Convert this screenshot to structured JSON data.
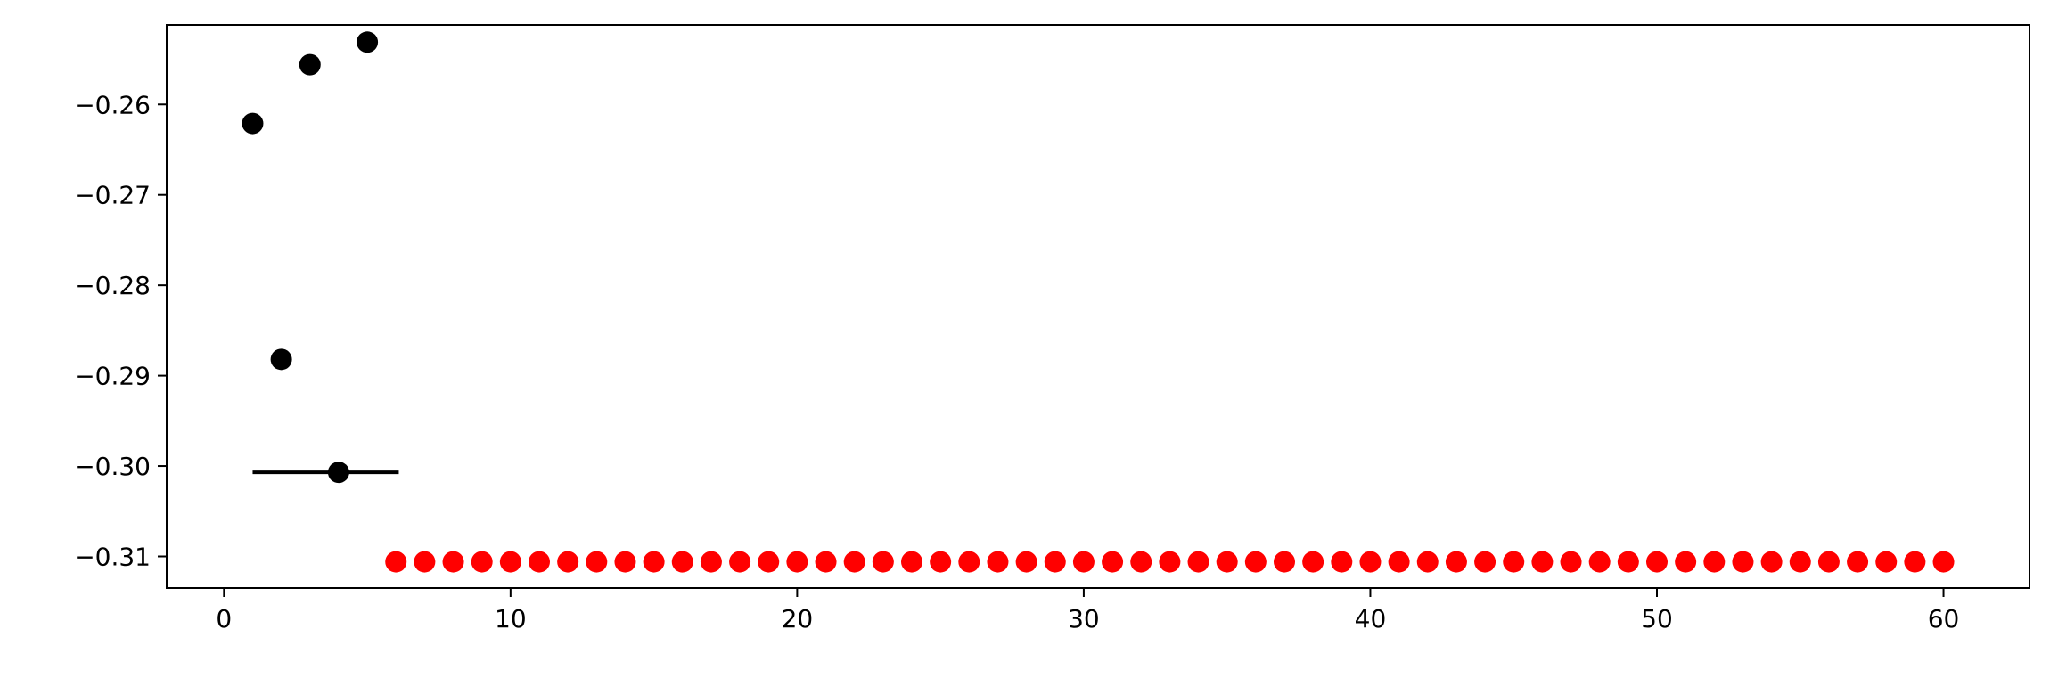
{
  "chart_data": {
    "type": "scatter",
    "title": "",
    "xlabel": "",
    "ylabel": "",
    "xlim": [
      -2,
      63
    ],
    "ylim": [
      -0.3135,
      -0.2512
    ],
    "xticks": [
      0,
      10,
      20,
      30,
      40,
      50,
      60
    ],
    "yticks": [
      -0.26,
      -0.27,
      -0.28,
      -0.29,
      -0.3,
      -0.31
    ],
    "xtick_labels": [
      "0",
      "10",
      "20",
      "30",
      "40",
      "50",
      "60"
    ],
    "ytick_labels": [
      "−0.26",
      "−0.27",
      "−0.28",
      "−0.29",
      "−0.30",
      "−0.31"
    ],
    "grid": false,
    "series": [
      {
        "color": "#000000",
        "x": [
          1,
          2,
          3,
          4,
          5
        ],
        "y": [
          -0.2621,
          -0.2882,
          -0.2556,
          -0.3007,
          -0.2531
        ]
      },
      {
        "color": "#ff0000",
        "x": [
          6,
          7,
          8,
          9,
          10,
          11,
          12,
          13,
          14,
          15,
          16,
          17,
          18,
          19,
          20,
          21,
          22,
          23,
          24,
          25,
          26,
          27,
          28,
          29,
          30,
          31,
          32,
          33,
          34,
          35,
          36,
          37,
          38,
          39,
          40,
          41,
          42,
          43,
          44,
          45,
          46,
          47,
          48,
          49,
          50,
          51,
          52,
          53,
          54,
          55,
          56,
          57,
          58,
          59,
          60
        ],
        "y": [
          -0.3106,
          -0.3106,
          -0.3106,
          -0.3106,
          -0.3106,
          -0.3106,
          -0.3106,
          -0.3106,
          -0.3106,
          -0.3106,
          -0.3106,
          -0.3106,
          -0.3106,
          -0.3106,
          -0.3106,
          -0.3106,
          -0.3106,
          -0.3106,
          -0.3106,
          -0.3106,
          -0.3106,
          -0.3106,
          -0.3106,
          -0.3106,
          -0.3106,
          -0.3106,
          -0.3106,
          -0.3106,
          -0.3106,
          -0.3106,
          -0.3106,
          -0.3106,
          -0.3106,
          -0.3106,
          -0.3106,
          -0.3106,
          -0.3106,
          -0.3106,
          -0.3106,
          -0.3106,
          -0.3106,
          -0.3106,
          -0.3106,
          -0.3106,
          -0.3106,
          -0.3106,
          -0.3106,
          -0.3106,
          -0.3106,
          -0.3106,
          -0.3106,
          -0.3106,
          -0.3106,
          -0.3106,
          -0.3106
        ]
      }
    ],
    "error_bars": [
      {
        "x": 4,
        "y": -0.3007,
        "xerr": [
          1,
          6.1
        ],
        "color": "#000000"
      }
    ]
  }
}
